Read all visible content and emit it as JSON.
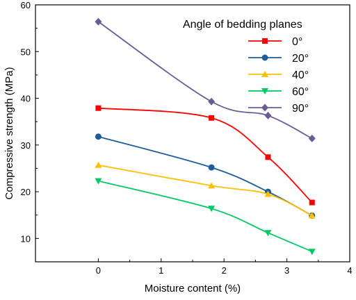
{
  "chart_data": {
    "type": "line",
    "xlabel": "Moisture content (%)",
    "ylabel": "Compressive strength (MPa)",
    "xlim": [
      -1,
      4
    ],
    "ylim": [
      5,
      60
    ],
    "xticks": [
      0,
      1,
      2,
      3,
      4
    ],
    "yticks": [
      10,
      20,
      30,
      40,
      50,
      60
    ],
    "grid": false,
    "legend": {
      "title": "Angle of bedding planes",
      "placement": "top-right"
    },
    "x": [
      0,
      1.8,
      2.7,
      3.4
    ],
    "series": [
      {
        "name": "0°",
        "color": "#ff0000",
        "marker": "square",
        "values": [
          37.9,
          35.8,
          27.4,
          17.7
        ]
      },
      {
        "name": "20°",
        "color": "#1f5c99",
        "marker": "circle",
        "values": [
          31.8,
          25.2,
          20.0,
          14.9
        ]
      },
      {
        "name": "40°",
        "color": "#ffc000",
        "marker": "triangle-up",
        "values": [
          25.7,
          21.3,
          19.5,
          14.9
        ]
      },
      {
        "name": "60°",
        "color": "#00c864",
        "marker": "triangle-down",
        "values": [
          22.3,
          16.4,
          11.2,
          7.2
        ]
      },
      {
        "name": "90°",
        "color": "#6b5b95",
        "marker": "diamond",
        "values": [
          56.4,
          39.3,
          36.3,
          31.4
        ]
      }
    ]
  }
}
